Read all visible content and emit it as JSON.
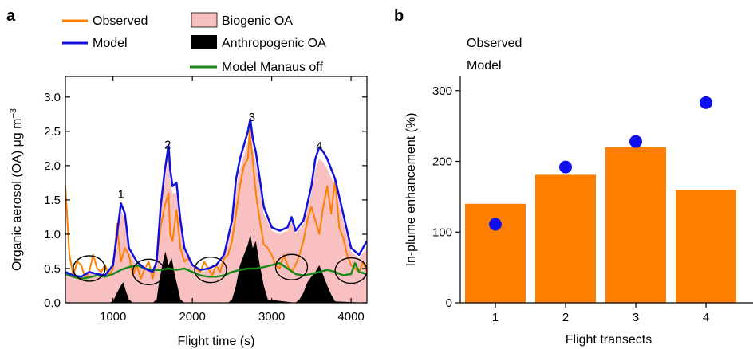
{
  "colors": {
    "observed": "#ff8000",
    "model": "#1010dd",
    "biogenic": "#f8c0c0",
    "anthropogenic": "#000000",
    "manaus_off": "#1a8a1a",
    "bar": "#ff8000",
    "dot": "#1010ee"
  },
  "chart_data": [
    {
      "panel_label": "a",
      "type": "line",
      "xlabel": "Flight time (s)",
      "ylabel_main": "Organic aerosol (OA) μg m",
      "ylabel_sup": "−3",
      "xlim": [
        400,
        4200
      ],
      "ylim": [
        0,
        3.3
      ],
      "xticks": [
        1000,
        2000,
        3000,
        4000
      ],
      "yticks": [
        0.0,
        0.5,
        1.0,
        1.5,
        2.0,
        2.5,
        3.0
      ],
      "ytick_labels": [
        "0.0",
        "0.5",
        "1.0",
        "1.5",
        "2.0",
        "2.5",
        "3.0"
      ],
      "legend": {
        "observed": "Observed",
        "model": "Model",
        "biogenic": "Biogenic OA",
        "anthropogenic": "Anthropogenic OA",
        "manaus_off": "Model Manaus off"
      },
      "annotations": [
        {
          "text": "1",
          "x": 1100,
          "y": 1.53
        },
        {
          "text": "2",
          "x": 1690,
          "y": 2.25
        },
        {
          "text": "3",
          "x": 2750,
          "y": 2.65
        },
        {
          "text": "4",
          "x": 3600,
          "y": 2.23
        }
      ],
      "circles": [
        {
          "x": 700,
          "y": 0.5
        },
        {
          "x": 1450,
          "y": 0.45
        },
        {
          "x": 2230,
          "y": 0.48
        },
        {
          "x": 3250,
          "y": 0.52
        },
        {
          "x": 4000,
          "y": 0.47
        }
      ],
      "series": [
        {
          "name": "Model",
          "x": [
            400,
            500,
            600,
            700,
            800,
            900,
            1000,
            1050,
            1100,
            1150,
            1200,
            1300,
            1400,
            1500,
            1550,
            1600,
            1650,
            1700,
            1720,
            1750,
            1800,
            1850,
            1900,
            2000,
            2100,
            2200,
            2300,
            2400,
            2500,
            2550,
            2600,
            2650,
            2700,
            2730,
            2760,
            2800,
            2850,
            2900,
            3000,
            3100,
            3200,
            3250,
            3300,
            3400,
            3500,
            3550,
            3600,
            3650,
            3700,
            3800,
            3900,
            4000,
            4100,
            4200
          ],
          "y": [
            0.45,
            0.4,
            0.38,
            0.45,
            0.42,
            0.4,
            0.55,
            1.0,
            1.45,
            1.3,
            0.8,
            0.6,
            0.5,
            0.45,
            0.6,
            1.4,
            1.9,
            2.3,
            1.95,
            1.7,
            1.75,
            1.2,
            0.8,
            0.55,
            0.48,
            0.5,
            0.55,
            0.7,
            1.2,
            1.8,
            2.1,
            2.3,
            2.5,
            2.68,
            2.4,
            2.2,
            1.8,
            1.4,
            1.1,
            1.05,
            1.1,
            1.25,
            1.05,
            1.2,
            1.7,
            2.1,
            2.27,
            2.2,
            2.1,
            1.8,
            1.3,
            0.8,
            0.7,
            0.9
          ]
        },
        {
          "name": "Observed",
          "x": [
            400,
            450,
            500,
            550,
            600,
            650,
            700,
            750,
            800,
            850,
            900,
            950,
            1000,
            1050,
            1080,
            1100,
            1150,
            1200,
            1250,
            1300,
            1350,
            1400,
            1450,
            1500,
            1550,
            1600,
            1650,
            1700,
            1720,
            1750,
            1800,
            1850,
            1900,
            1950,
            2000,
            2050,
            2100,
            2150,
            2200,
            2250,
            2300,
            2350,
            2400,
            2450,
            2500,
            2550,
            2600,
            2650,
            2700,
            2720,
            2750,
            2800,
            2850,
            2900,
            2950,
            3000,
            3050,
            3100,
            3150,
            3200,
            3250,
            3300,
            3350,
            3400,
            3450,
            3500,
            3550,
            3600,
            3650,
            3700,
            3750,
            3800,
            3850,
            3900,
            3950,
            4000,
            4050,
            4100,
            4150,
            4200
          ],
          "y": [
            1.7,
            0.7,
            0.4,
            0.6,
            0.55,
            0.35,
            0.45,
            0.7,
            0.5,
            0.45,
            0.55,
            0.4,
            0.5,
            1.15,
            0.8,
            0.6,
            0.8,
            0.7,
            0.4,
            0.55,
            0.35,
            0.5,
            0.6,
            0.35,
            0.65,
            1.1,
            1.4,
            1.6,
            1.0,
            0.9,
            1.35,
            0.8,
            0.6,
            0.65,
            0.55,
            0.5,
            0.45,
            0.6,
            0.5,
            0.4,
            0.55,
            0.45,
            0.65,
            0.7,
            0.9,
            1.3,
            1.7,
            2.0,
            2.1,
            2.5,
            2.2,
            1.6,
            1.2,
            0.85,
            0.8,
            0.7,
            0.55,
            0.5,
            0.7,
            0.55,
            0.45,
            0.55,
            0.7,
            0.9,
            1.2,
            1.4,
            1.2,
            1.0,
            1.4,
            1.7,
            1.3,
            1.8,
            1.1,
            0.95,
            0.7,
            0.55,
            0.5,
            0.45,
            0.6,
            0.45
          ]
        },
        {
          "name": "Model Manaus off",
          "x": [
            400,
            500,
            600,
            700,
            800,
            900,
            1000,
            1100,
            1200,
            1300,
            1400,
            1500,
            1600,
            1700,
            1800,
            1900,
            2000,
            2100,
            2200,
            2300,
            2400,
            2500,
            2600,
            2700,
            2800,
            2900,
            3000,
            3100,
            3200,
            3300,
            3400,
            3500,
            3600,
            3700,
            3800,
            3900,
            4000,
            4050,
            4100,
            4200
          ],
          "y": [
            0.42,
            0.38,
            0.35,
            0.37,
            0.4,
            0.38,
            0.42,
            0.48,
            0.52,
            0.55,
            0.5,
            0.48,
            0.48,
            0.5,
            0.48,
            0.5,
            0.45,
            0.4,
            0.38,
            0.38,
            0.4,
            0.45,
            0.48,
            0.5,
            0.5,
            0.52,
            0.55,
            0.58,
            0.5,
            0.42,
            0.4,
            0.42,
            0.45,
            0.48,
            0.45,
            0.4,
            0.42,
            0.58,
            0.45,
            0.42
          ]
        },
        {
          "name": "Biogenic OA",
          "x": [
            400,
            500,
            600,
            700,
            800,
            900,
            1000,
            1050,
            1100,
            1150,
            1200,
            1300,
            1400,
            1500,
            1550,
            1600,
            1650,
            1700,
            1720,
            1750,
            1800,
            1850,
            1900,
            2000,
            2100,
            2200,
            2300,
            2400,
            2500,
            2550,
            2600,
            2650,
            2700,
            2730,
            2760,
            2800,
            2850,
            2900,
            3000,
            3100,
            3200,
            3250,
            3300,
            3400,
            3500,
            3550,
            3600,
            3650,
            3700,
            3800,
            3900,
            4000,
            4100,
            4200
          ],
          "y": [
            0.45,
            0.4,
            0.38,
            0.45,
            0.42,
            0.4,
            0.55,
            0.95,
            1.35,
            1.2,
            0.75,
            0.55,
            0.48,
            0.45,
            0.55,
            1.3,
            1.75,
            2.1,
            1.8,
            1.6,
            1.6,
            1.1,
            0.75,
            0.52,
            0.45,
            0.48,
            0.5,
            0.65,
            1.1,
            1.65,
            1.95,
            2.15,
            2.35,
            2.55,
            2.25,
            2.05,
            1.7,
            1.3,
            1.05,
            1.0,
            1.05,
            1.2,
            1.0,
            1.15,
            1.6,
            1.95,
            2.1,
            2.05,
            1.95,
            1.7,
            1.2,
            0.75,
            0.65,
            0.8
          ]
        },
        {
          "name": "Anthropogenic OA",
          "x": [
            400,
            950,
            1000,
            1050,
            1100,
            1130,
            1160,
            1200,
            1250,
            1500,
            1550,
            1580,
            1620,
            1660,
            1700,
            1740,
            1780,
            1820,
            1850,
            1900,
            2450,
            2500,
            2550,
            2600,
            2650,
            2700,
            2730,
            2760,
            2800,
            2850,
            2900,
            2950,
            3300,
            3350,
            3400,
            3450,
            3500,
            3550,
            3600,
            3650,
            3700,
            3750,
            3800,
            4200
          ],
          "y": [
            0,
            0,
            0.02,
            0.15,
            0.25,
            0.3,
            0.18,
            0.05,
            0,
            0,
            0.05,
            0.3,
            0.55,
            0.75,
            0.55,
            0.65,
            0.4,
            0.2,
            0.05,
            0,
            0,
            0.05,
            0.25,
            0.55,
            0.7,
            0.85,
            1.0,
            0.8,
            0.9,
            0.55,
            0.25,
            0.05,
            0,
            0.05,
            0.15,
            0.3,
            0.38,
            0.45,
            0.55,
            0.4,
            0.25,
            0.12,
            0.02,
            0
          ]
        }
      ]
    },
    {
      "panel_label": "b",
      "type": "bar",
      "xlabel": "Flight transects",
      "ylabel": "In-plume enhancement (%)",
      "categories": [
        "1",
        "2",
        "3",
        "4"
      ],
      "ylim": [
        0,
        320
      ],
      "yticks": [
        0,
        100,
        200,
        300
      ],
      "legend": {
        "observed": "Observed",
        "model": "Model"
      },
      "series": [
        {
          "name": "Observed",
          "values": [
            140,
            181,
            220,
            160
          ]
        },
        {
          "name": "Model",
          "values": [
            111,
            192,
            228,
            283
          ]
        }
      ]
    }
  ]
}
